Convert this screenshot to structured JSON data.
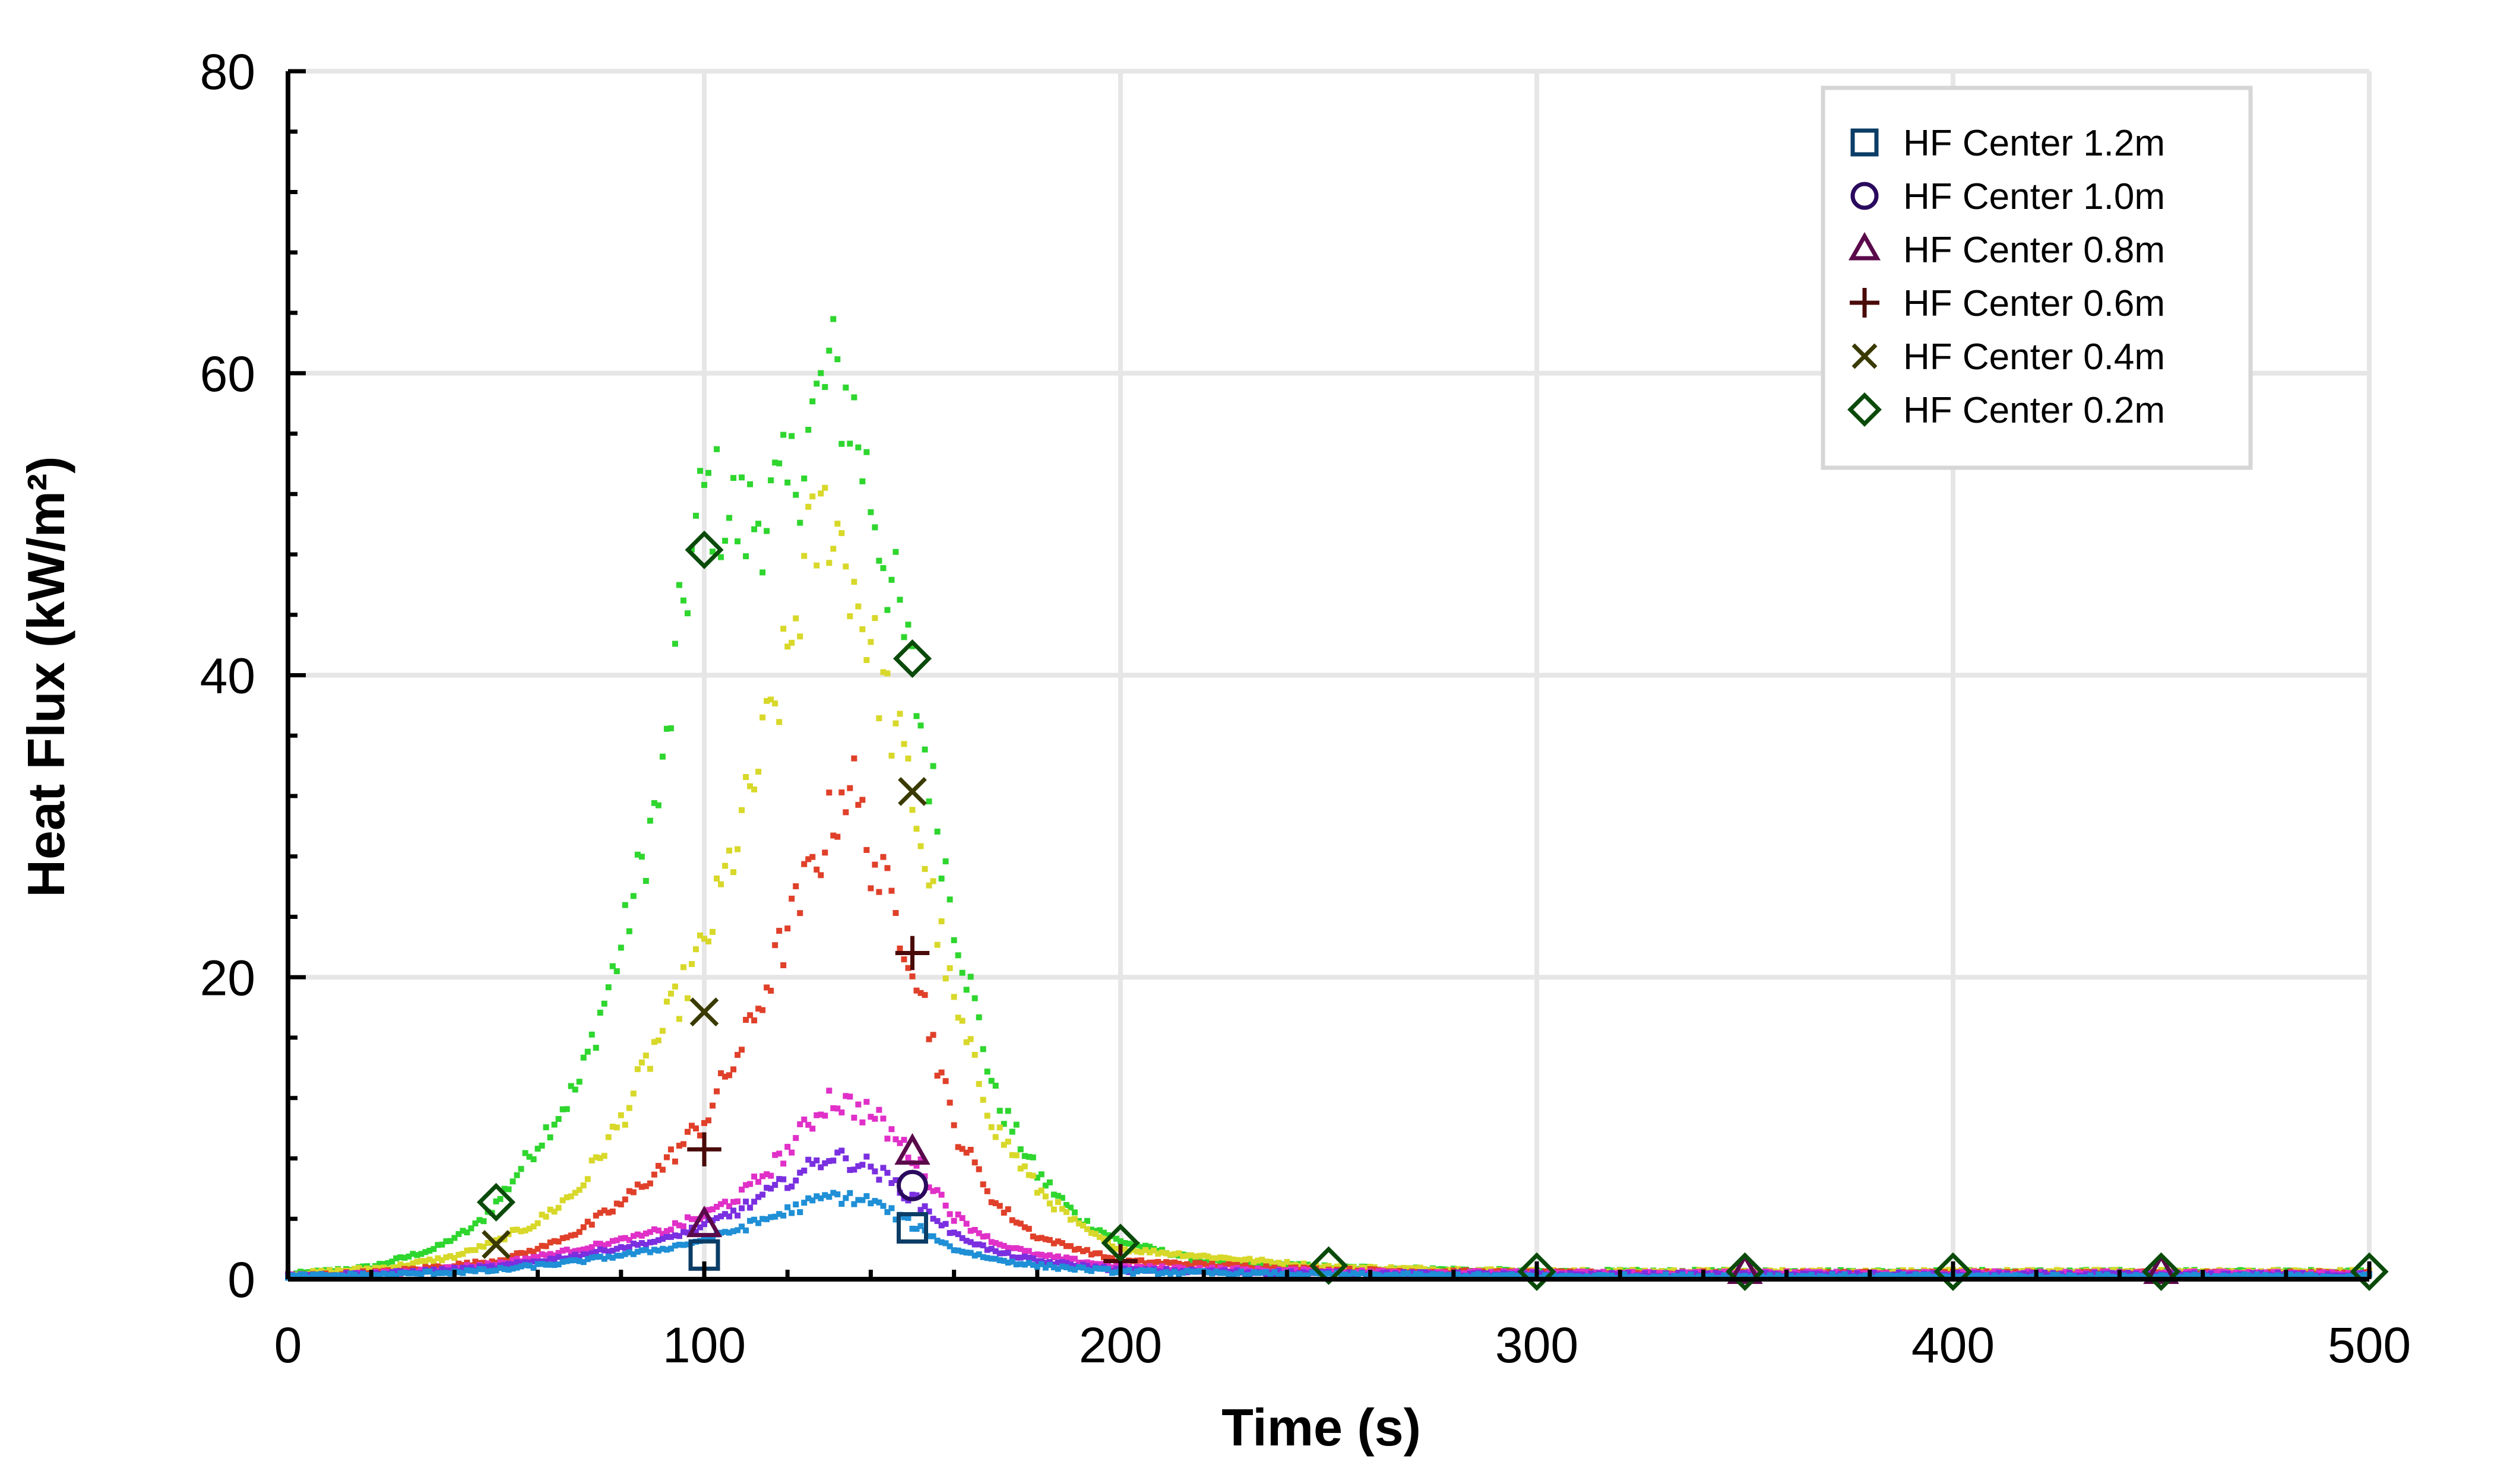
{
  "chart_data": {
    "type": "scatter",
    "title": "",
    "xlabel": "Time (s)",
    "ylabel": "Heat Flux (kW/m²)",
    "xlim": [
      0,
      500
    ],
    "ylim": [
      0,
      80
    ],
    "xticks": [
      0,
      100,
      200,
      300,
      400,
      500
    ],
    "yticks": [
      0,
      20,
      40,
      60,
      80
    ],
    "x_tick_labels": [
      "0",
      "100",
      "200",
      "300",
      "400",
      "500"
    ],
    "y_tick_labels": [
      "0",
      "20",
      "40",
      "60",
      "80"
    ],
    "grid": true,
    "legend_position": "top-right",
    "series": [
      {
        "name": "HF Center 1.2m",
        "data_color": "#1f8fd6",
        "marker_color": "#0b3d66",
        "marker": "square",
        "x": [
          0,
          25,
          50,
          70,
          90,
          100,
          110,
          120,
          130,
          140,
          150,
          160,
          170,
          180,
          200,
          250,
          300,
          350,
          400,
          450,
          500
        ],
        "y": [
          0.2,
          0.3,
          0.6,
          1.2,
          2.0,
          2.6,
          3.5,
          4.5,
          5.5,
          5.2,
          3.6,
          2.0,
          1.3,
          0.9,
          0.5,
          0.3,
          0.2,
          0.2,
          0.2,
          0.2,
          0.2
        ],
        "markers": [
          [
            100,
            1.6
          ],
          [
            150,
            3.4
          ]
        ]
      },
      {
        "name": "HF Center 1.0m",
        "data_color": "#7a2fe0",
        "marker_color": "#2a0a5e",
        "marker": "circle",
        "x": [
          0,
          25,
          50,
          70,
          90,
          100,
          110,
          120,
          130,
          140,
          150,
          160,
          170,
          180,
          200,
          250,
          300,
          350,
          400,
          450,
          500
        ],
        "y": [
          0.2,
          0.4,
          0.8,
          1.6,
          2.6,
          3.5,
          4.8,
          6.5,
          8.2,
          7.5,
          5.4,
          3.0,
          1.8,
          1.2,
          0.6,
          0.4,
          0.3,
          0.3,
          0.3,
          0.3,
          0.3
        ],
        "markers": [
          [
            150,
            6.2
          ]
        ]
      },
      {
        "name": "HF Center 0.8m",
        "data_color": "#e030c8",
        "marker_color": "#5a0a4a",
        "marker": "triangle",
        "x": [
          0,
          25,
          50,
          70,
          90,
          100,
          110,
          120,
          130,
          140,
          150,
          160,
          170,
          180,
          200,
          250,
          300,
          350,
          400,
          450,
          500
        ],
        "y": [
          0.2,
          0.4,
          1.0,
          2.0,
          3.2,
          4.2,
          5.8,
          8.5,
          12.0,
          11.0,
          8.2,
          4.2,
          2.4,
          1.6,
          0.8,
          0.5,
          0.4,
          0.4,
          0.4,
          0.4,
          0.4
        ],
        "markers": [
          [
            100,
            3.6
          ],
          [
            150,
            8.4
          ],
          [
            350,
            0.5
          ],
          [
            450,
            0.5
          ]
        ]
      },
      {
        "name": "HF Center 0.6m",
        "data_color": "#e0402a",
        "marker_color": "#4a0a0a",
        "marker": "plus",
        "x": [
          0,
          25,
          50,
          60,
          70,
          80,
          90,
          100,
          110,
          120,
          130,
          135,
          140,
          150,
          160,
          170,
          180,
          200,
          250,
          300,
          350,
          400,
          450,
          500
        ],
        "y": [
          0.2,
          0.5,
          1.2,
          2.0,
          3.2,
          5.0,
          7.5,
          10.5,
          16.0,
          23.0,
          30.0,
          33.5,
          28.0,
          21.5,
          10.0,
          5.0,
          2.8,
          1.2,
          0.6,
          0.4,
          0.4,
          0.4,
          0.4,
          0.4
        ],
        "markers": [
          [
            100,
            8.6
          ],
          [
            150,
            21.6
          ],
          [
            200,
            1.2
          ]
        ]
      },
      {
        "name": "HF Center 0.4m",
        "data_color": "#d8d82a",
        "marker_color": "#3a3a00",
        "marker": "x",
        "x": [
          0,
          25,
          40,
          50,
          60,
          70,
          80,
          90,
          100,
          110,
          120,
          125,
          130,
          135,
          140,
          150,
          160,
          170,
          180,
          190,
          200,
          250,
          300,
          350,
          400,
          450,
          500
        ],
        "y": [
          0.3,
          0.8,
          1.5,
          2.5,
          3.8,
          6.0,
          10.5,
          16.5,
          22.0,
          31.0,
          41.0,
          48.0,
          51.0,
          47.0,
          42.0,
          32.0,
          18.0,
          10.0,
          6.0,
          3.5,
          2.0,
          0.8,
          0.5,
          0.5,
          0.5,
          0.5,
          0.5
        ],
        "markers": [
          [
            50,
            2.3
          ],
          [
            100,
            17.7
          ],
          [
            150,
            32.3
          ]
        ]
      },
      {
        "name": "HF Center 0.2m",
        "data_color": "#2ed62e",
        "marker_color": "#0a4a0a",
        "marker": "diamond",
        "x": [
          0,
          20,
          35,
          45,
          50,
          60,
          70,
          80,
          90,
          95,
          100,
          110,
          120,
          125,
          130,
          135,
          140,
          150,
          160,
          170,
          180,
          190,
          200,
          220,
          250,
          300,
          350,
          400,
          450,
          500
        ],
        "y": [
          0.3,
          0.8,
          2.0,
          3.5,
          5.0,
          9.0,
          13.0,
          22.0,
          33.0,
          45.0,
          52.0,
          50.0,
          52.0,
          56.0,
          60.0,
          58.0,
          52.0,
          40.0,
          24.0,
          12.0,
          7.0,
          4.0,
          2.5,
          1.2,
          0.8,
          0.5,
          0.5,
          0.5,
          0.5,
          0.5
        ],
        "markers": [
          [
            50,
            5.1
          ],
          [
            100,
            48.3
          ],
          [
            150,
            41.1
          ],
          [
            200,
            2.4
          ],
          [
            250,
            0.9
          ],
          [
            300,
            0.5
          ],
          [
            350,
            0.5
          ],
          [
            400,
            0.5
          ],
          [
            450,
            0.5
          ],
          [
            500,
            0.5
          ]
        ]
      }
    ]
  }
}
